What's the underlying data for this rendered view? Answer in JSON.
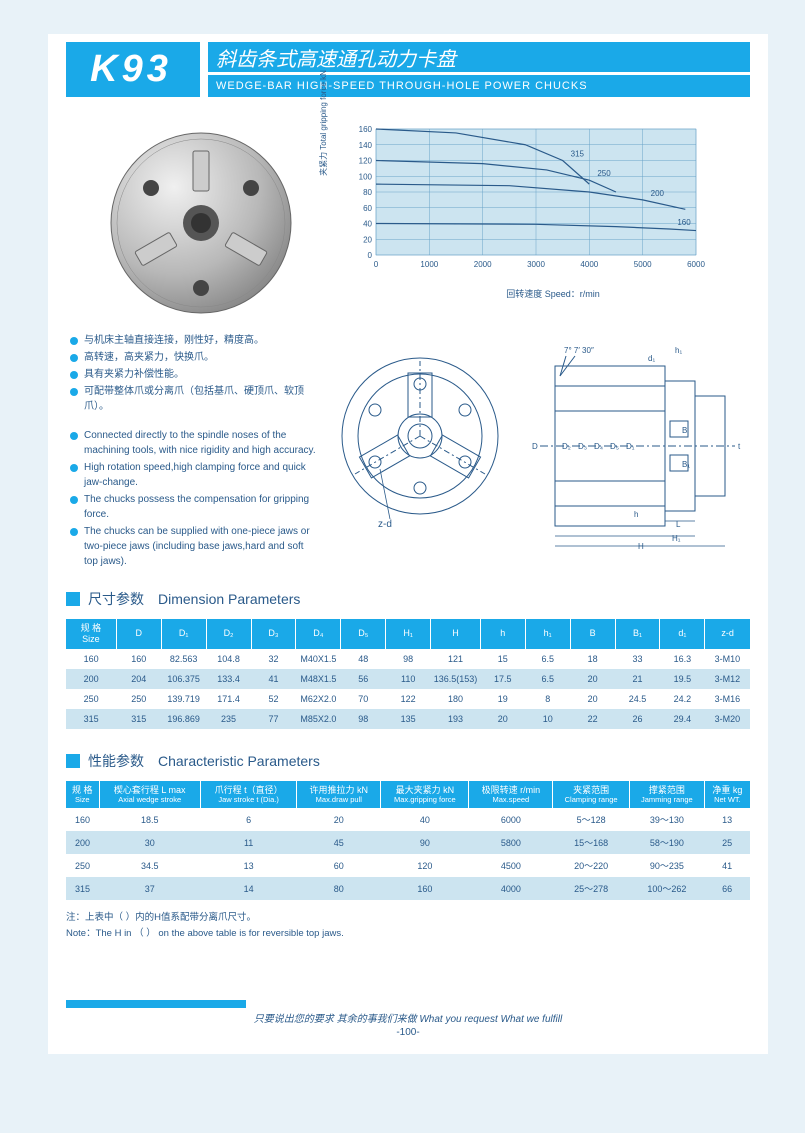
{
  "header": {
    "code": "K93",
    "title_cn": "斜齿条式高速通孔动力卡盘",
    "title_en": "WEDGE-BAR HIGH-SPEED THROUGH-HOLE POWER CHUCKS"
  },
  "chart": {
    "ylabel": "夹紧力  Total gripping force kN",
    "xlabel": "回转速度  Speed：r/min",
    "ylim": [
      0,
      160
    ],
    "ytick_step": 20,
    "xlim": [
      0,
      6000
    ],
    "xtick_step": 1000,
    "yticks": [
      "0",
      "20",
      "40",
      "60",
      "80",
      "100",
      "120",
      "140",
      "160"
    ],
    "xticks": [
      "0",
      "1000",
      "2000",
      "3000",
      "4000",
      "5000",
      "6000"
    ],
    "bg_color": "#cce4f0",
    "grid_color": "#6aa3c8",
    "line_color": "#2a5a8a",
    "series": [
      {
        "label": "315",
        "points": [
          [
            0,
            160
          ],
          [
            1500,
            155
          ],
          [
            2800,
            140
          ],
          [
            3500,
            120
          ],
          [
            4000,
            90
          ]
        ]
      },
      {
        "label": "250",
        "points": [
          [
            0,
            120
          ],
          [
            2000,
            116
          ],
          [
            3200,
            108
          ],
          [
            4000,
            95
          ],
          [
            4500,
            80
          ]
        ]
      },
      {
        "label": "200",
        "points": [
          [
            0,
            90
          ],
          [
            2500,
            88
          ],
          [
            4000,
            80
          ],
          [
            5000,
            70
          ],
          [
            5800,
            58
          ]
        ]
      },
      {
        "label": "160",
        "points": [
          [
            0,
            40
          ],
          [
            3000,
            39
          ],
          [
            4500,
            36
          ],
          [
            5500,
            33
          ],
          [
            6000,
            31
          ]
        ]
      }
    ]
  },
  "bullets": {
    "cn": [
      "与机床主轴直接连接，刚性好，精度高。",
      "高转速，高夹紧力，快换爪。",
      "具有夹紧力补偿性能。",
      "可配带整体爪或分离爪（包括基爪、硬顶爪、软顶爪）。"
    ],
    "en": [
      "Connected directly to the spindle noses of the machining tools, with nice rigidity and high accuracy.",
      "High rotation speed,high clamping force and quick jaw-change.",
      "The chucks possess the compensation for gripping force.",
      "The chucks can be supplied with one-piece jaws or two-piece jaws (including base jaws,hard and soft top jaws)."
    ]
  },
  "diagram_labels": {
    "front": [
      "z-d"
    ],
    "side": [
      "7° 7′ 30″",
      "h₁",
      "d₁",
      "D",
      "D₂",
      "D₃",
      "D₄",
      "D₅",
      "D₁",
      "B",
      "B₁",
      "t",
      "h",
      "L",
      "H₁",
      "H"
    ]
  },
  "dim_section": {
    "cn": "尺寸参数",
    "en": "Dimension Parameters"
  },
  "dim_headers": [
    "规 格\nSize",
    "D",
    "D₁",
    "D₂",
    "D₃",
    "D₄",
    "D₅",
    "H₁",
    "H",
    "h",
    "h₁",
    "B",
    "B₁",
    "d₁",
    "z-d"
  ],
  "dim_rows": [
    [
      "160",
      "160",
      "82.563",
      "104.8",
      "32",
      "M40X1.5",
      "48",
      "98",
      "121",
      "15",
      "6.5",
      "18",
      "33",
      "16.3",
      "3-M10"
    ],
    [
      "200",
      "204",
      "106.375",
      "133.4",
      "41",
      "M48X1.5",
      "56",
      "110",
      "136.5(153)",
      "17.5",
      "6.5",
      "20",
      "21",
      "19.5",
      "3-M12"
    ],
    [
      "250",
      "250",
      "139.719",
      "171.4",
      "52",
      "M62X2.0",
      "70",
      "122",
      "180",
      "19",
      "8",
      "20",
      "24.5",
      "24.2",
      "3-M16"
    ],
    [
      "315",
      "315",
      "196.869",
      "235",
      "77",
      "M85X2.0",
      "98",
      "135",
      "193",
      "20",
      "10",
      "22",
      "26",
      "29.4",
      "3-M20"
    ]
  ],
  "char_section": {
    "cn": "性能参数",
    "en": "Characteristic Parameters"
  },
  "char_headers": [
    {
      "cn": "规 格",
      "en": "Size"
    },
    {
      "cn": "楔心套行程 L max",
      "en": "Axial wedge stroke"
    },
    {
      "cn": "爪行程 t（直径）",
      "en": "Jaw stroke t (Dia.)"
    },
    {
      "cn": "许用推拉力 kN",
      "en": "Max.draw pull"
    },
    {
      "cn": "最大夹紧力 kN",
      "en": "Max.gripping force"
    },
    {
      "cn": "极限转速 r/min",
      "en": "Max.speed"
    },
    {
      "cn": "夹紧范围",
      "en": "Clamping range"
    },
    {
      "cn": "撑紧范围",
      "en": "Jamming range"
    },
    {
      "cn": "净重 kg",
      "en": "Net WT."
    }
  ],
  "char_rows": [
    [
      "160",
      "18.5",
      "6",
      "20",
      "40",
      "6000",
      "5～128",
      "39～130",
      "13"
    ],
    [
      "200",
      "30",
      "11",
      "45",
      "90",
      "5800",
      "15～168",
      "58～190",
      "25"
    ],
    [
      "250",
      "34.5",
      "13",
      "60",
      "120",
      "4500",
      "20～220",
      "90～235",
      "41"
    ],
    [
      "315",
      "37",
      "14",
      "80",
      "160",
      "4000",
      "25～278",
      "100～262",
      "66"
    ]
  ],
  "note": {
    "cn": "注：上表中（  ）内的H值系配带分离爪尺寸。",
    "en": "Note：The H in （  ） on the above table is for reversible top jaws."
  },
  "footer": {
    "slogan": "只要说出您的要求  其余的事我们来做   What you request What we fulfill",
    "page": "-100-"
  },
  "colors": {
    "primary": "#1aa9e8",
    "text": "#2a5a8a",
    "page_bg": "#e8f2f8",
    "row_alt": "#cce4f0"
  }
}
